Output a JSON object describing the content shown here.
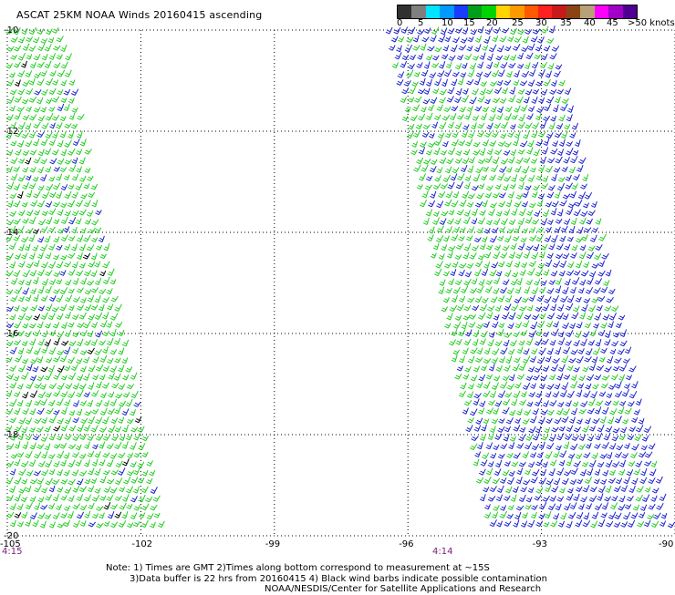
{
  "title": "ASCAT 25KM NOAA Winds 20160415 ascending",
  "legend": {
    "colors": [
      "#303030",
      "#7f7f7f",
      "#00e5ff",
      "#0099ff",
      "#1a3cff",
      "#009e1a",
      "#00d400",
      "#ffd400",
      "#ff9900",
      "#ff5a00",
      "#ff2020",
      "#c81a1a",
      "#8b4513",
      "#b8a078",
      "#ff00ff",
      "#a000c8",
      "#500090"
    ],
    "labels": [
      "0",
      "5",
      "10",
      "15",
      "20",
      "25",
      "30",
      "35",
      "40",
      "45"
    ],
    "unit_label": ">50 knots"
  },
  "map": {
    "lon_range": [
      -105,
      -90
    ],
    "lat_range": [
      -20,
      -10
    ],
    "lon_ticks": [
      "-105",
      "-102",
      "-99",
      "-96",
      "-93",
      "-90"
    ],
    "lat_ticks": [
      "-10",
      "-12",
      "-14",
      "-16",
      "-18",
      "-20"
    ],
    "grid": true,
    "barb_colors": {
      "green": "#22cc22",
      "blue": "#1a22cc",
      "black": "#000000"
    },
    "swaths": [
      {
        "name": "west-swath",
        "time": "4:15",
        "lat_top": -10,
        "lat_bottom": -20,
        "lon_left_top": -105,
        "lon_right_top": -103.7,
        "lon_left_bottom": -105,
        "lon_right_bottom": -101.4
      },
      {
        "name": "east-swath",
        "time": "4:14",
        "lat_top": -10,
        "lat_bottom": -20,
        "lon_left_top": -96.5,
        "lon_right_top": -92.7,
        "lon_left_bottom": -94.2,
        "lon_right_bottom": -90
      }
    ]
  },
  "notes": [
    "Note: 1) Times are GMT 2)Times along bottom correspond to measurement at ~15S",
    "3)Data buffer is 22 hrs from 20160415 4) Black wind barbs indicate possible contamination",
    "NOAA/NESDIS/Center for Satellite Applications and Research"
  ]
}
